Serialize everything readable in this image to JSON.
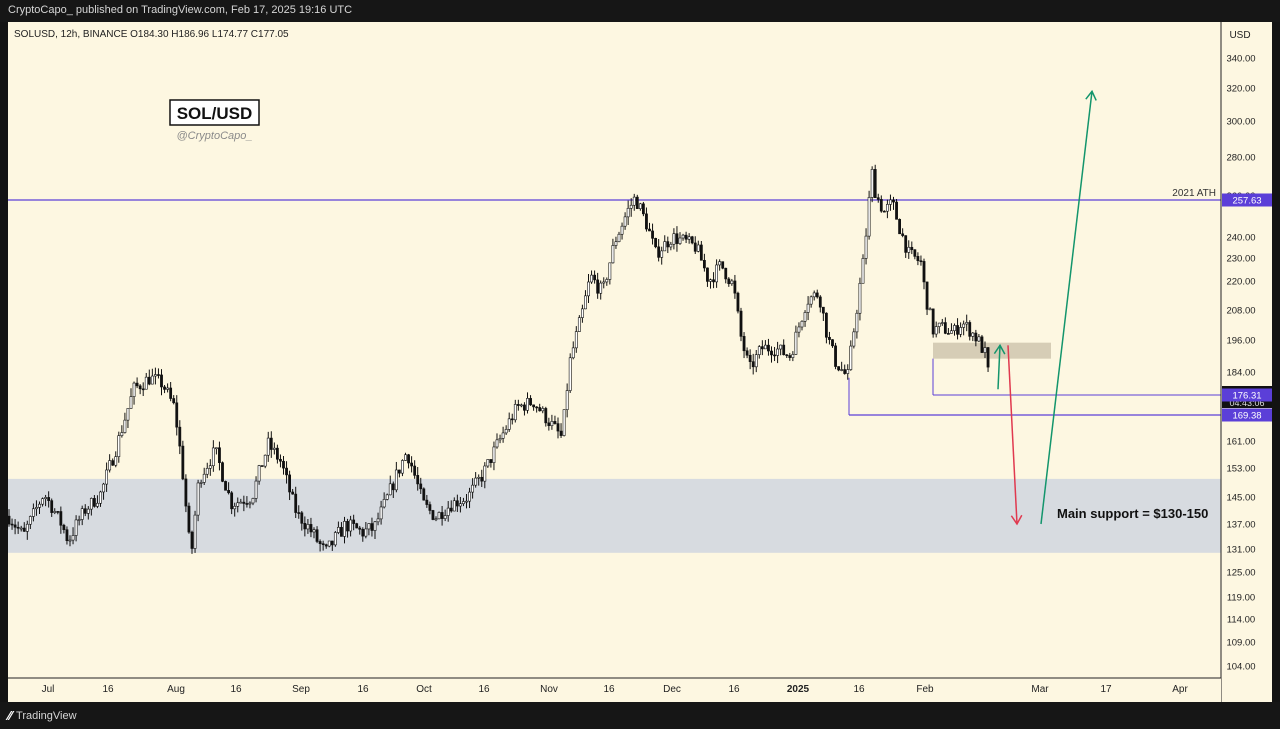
{
  "header": {
    "publish_text": "CryptoCapo_ published on TradingView.com, Feb 17, 2025 19:16 UTC"
  },
  "footer": {
    "brand": "TradingView"
  },
  "colors": {
    "background": "#fdf7e1",
    "candle": "#111111",
    "ath_line": "#5b3fd8",
    "support_zone": "#d7dbe0",
    "target_box": "#cfc6ae",
    "up_arrow": "#13956c",
    "down_arrow": "#e0394f"
  },
  "chart_data": {
    "type": "candlestick",
    "symbol_line": "SOLUSD, 12h, BINANCE  O184.30  H186.96  L174.77  C177.05",
    "watermark": {
      "title": "SOL/USD",
      "author": "@CryptoCapo_"
    },
    "currency": "USD",
    "y_ticks": [
      "340.00",
      "320.00",
      "300.00",
      "280.00",
      "260.00",
      "240.00",
      "230.00",
      "220.00",
      "208.00",
      "196.00",
      "184.00",
      "161.00",
      "153.00",
      "145.00",
      "137.00",
      "131.00",
      "125.00",
      "119.00",
      "114.00",
      "109.00",
      "104.00"
    ],
    "x_ticks": [
      "Jul",
      "16",
      "Aug",
      "16",
      "Sep",
      "16",
      "Oct",
      "16",
      "Nov",
      "16",
      "Dec",
      "16",
      "2025",
      "16",
      "Feb",
      "Mar",
      "17",
      "Apr"
    ],
    "price_labels": [
      {
        "text": "257.63",
        "kind": "ath"
      },
      {
        "text": "177.05",
        "sub": "04:43:06",
        "kind": "last"
      },
      {
        "text": "176.31",
        "kind": "level"
      },
      {
        "text": "169.38",
        "kind": "level"
      }
    ],
    "levels": [
      {
        "label": "2021 ATH",
        "price": 257.63
      },
      {
        "price": 176.31
      },
      {
        "price": 169.38
      }
    ],
    "support_zone": {
      "label": "Main support = $130-150",
      "from": 130,
      "to": 150
    },
    "target_zone": {
      "from": 189,
      "to": 195
    },
    "arrows": [
      {
        "direction": "up",
        "target": 318
      },
      {
        "direction": "down",
        "target": 137
      },
      {
        "direction": "up-short",
        "target": 192
      }
    ],
    "price_path": [
      [
        "2024-06-20",
        141
      ],
      [
        "2024-06-25",
        134
      ],
      [
        "2024-06-30",
        146
      ],
      [
        "2024-07-03",
        140
      ],
      [
        "2024-07-06",
        133
      ],
      [
        "2024-07-10",
        141
      ],
      [
        "2024-07-14",
        146
      ],
      [
        "2024-07-18",
        160
      ],
      [
        "2024-07-22",
        178
      ],
      [
        "2024-07-26",
        182
      ],
      [
        "2024-07-29",
        180
      ],
      [
        "2024-08-01",
        172
      ],
      [
        "2024-08-03",
        152
      ],
      [
        "2024-08-05",
        128
      ],
      [
        "2024-08-07",
        150
      ],
      [
        "2024-08-11",
        158
      ],
      [
        "2024-08-15",
        143
      ],
      [
        "2024-08-20",
        145
      ],
      [
        "2024-08-24",
        160
      ],
      [
        "2024-08-27",
        155
      ],
      [
        "2024-08-31",
        140
      ],
      [
        "2024-09-03",
        136
      ],
      [
        "2024-09-07",
        130
      ],
      [
        "2024-09-12",
        137
      ],
      [
        "2024-09-16",
        135
      ],
      [
        "2024-09-19",
        136
      ],
      [
        "2024-09-23",
        147
      ],
      [
        "2024-09-27",
        158
      ],
      [
        "2024-10-01",
        143
      ],
      [
        "2024-10-04",
        139
      ],
      [
        "2024-10-08",
        143
      ],
      [
        "2024-10-12",
        145
      ],
      [
        "2024-10-16",
        152
      ],
      [
        "2024-10-20",
        162
      ],
      [
        "2024-10-24",
        172
      ],
      [
        "2024-10-28",
        174
      ],
      [
        "2024-11-01",
        167
      ],
      [
        "2024-11-04",
        162
      ],
      [
        "2024-11-06",
        188
      ],
      [
        "2024-11-09",
        207
      ],
      [
        "2024-11-11",
        222
      ],
      [
        "2024-11-14",
        215
      ],
      [
        "2024-11-17",
        238
      ],
      [
        "2024-11-20",
        252
      ],
      [
        "2024-11-22",
        259
      ],
      [
        "2024-11-25",
        245
      ],
      [
        "2024-11-27",
        232
      ],
      [
        "2024-12-01",
        240
      ],
      [
        "2024-12-04",
        238
      ],
      [
        "2024-12-07",
        235
      ],
      [
        "2024-12-10",
        220
      ],
      [
        "2024-12-13",
        227
      ],
      [
        "2024-12-16",
        218
      ],
      [
        "2024-12-18",
        196
      ],
      [
        "2024-12-20",
        185
      ],
      [
        "2024-12-23",
        193
      ],
      [
        "2024-12-26",
        193
      ],
      [
        "2024-12-30",
        190
      ],
      [
        "2025-01-03",
        212
      ],
      [
        "2025-01-06",
        215
      ],
      [
        "2025-01-08",
        198
      ],
      [
        "2025-01-10",
        188
      ],
      [
        "2025-01-13",
        182
      ],
      [
        "2025-01-15",
        205
      ],
      [
        "2025-01-17",
        230
      ],
      [
        "2025-01-19",
        272
      ],
      [
        "2025-01-20",
        260
      ],
      [
        "2025-01-22",
        252
      ],
      [
        "2025-01-24",
        256
      ],
      [
        "2025-01-26",
        243
      ],
      [
        "2025-01-28",
        232
      ],
      [
        "2025-01-31",
        228
      ],
      [
        "2025-02-01",
        215
      ],
      [
        "2025-02-03",
        200
      ],
      [
        "2025-02-05",
        201
      ],
      [
        "2025-02-08",
        199
      ],
      [
        "2025-02-10",
        203
      ],
      [
        "2025-02-12",
        200
      ],
      [
        "2025-02-14",
        196
      ],
      [
        "2025-02-16",
        190
      ],
      [
        "2025-02-17",
        177
      ]
    ],
    "annotation": "Main support = $130-150",
    "ath_label": "2021 ATH"
  }
}
